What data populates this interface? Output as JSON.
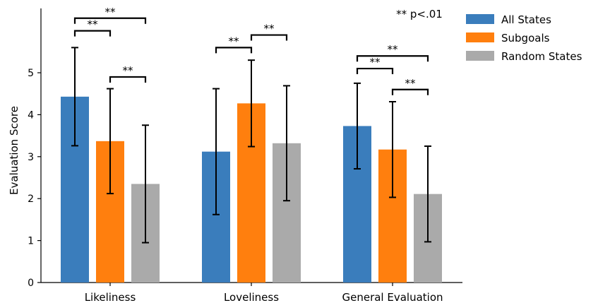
{
  "chart_data": {
    "type": "bar",
    "categories": [
      "Likeliness",
      "Loveliness",
      "General Evaluation"
    ],
    "series": [
      {
        "name": "All States",
        "color": "#3a7dbc",
        "values": [
          4.43,
          3.12,
          3.73
        ],
        "err": [
          1.17,
          1.5,
          1.02
        ]
      },
      {
        "name": "Subgoals",
        "color": "#ff7f0e",
        "values": [
          3.37,
          4.27,
          3.17
        ],
        "err": [
          1.25,
          1.03,
          1.14
        ]
      },
      {
        "name": "Random States",
        "color": "#aaaaaa",
        "values": [
          2.35,
          3.32,
          2.11
        ],
        "err": [
          1.4,
          1.37,
          1.14
        ]
      }
    ],
    "ylabel": "Evaluation Score",
    "xlabel": "",
    "ylim": [
      0,
      6.5
    ],
    "yticks": [
      "0",
      "1",
      "2",
      "3",
      "4",
      "5"
    ],
    "legend_position": "top-right",
    "significance_note": "** p<.01",
    "significance_brackets": [
      {
        "category": 0,
        "from": 0,
        "to": 2,
        "level": 6.3,
        "label": "**"
      },
      {
        "category": 0,
        "from": 0,
        "to": 1,
        "level": 6.0,
        "label": "**"
      },
      {
        "category": 0,
        "from": 1,
        "to": 2,
        "level": 4.9,
        "label": "**"
      },
      {
        "category": 1,
        "from": 0,
        "to": 1,
        "level": 5.6,
        "label": "**"
      },
      {
        "category": 1,
        "from": 1,
        "to": 2,
        "level": 5.9,
        "label": "**"
      },
      {
        "category": 2,
        "from": 0,
        "to": 2,
        "level": 5.4,
        "label": "**"
      },
      {
        "category": 2,
        "from": 0,
        "to": 1,
        "level": 5.1,
        "label": "**"
      },
      {
        "category": 2,
        "from": 1,
        "to": 2,
        "level": 4.6,
        "label": "**"
      }
    ]
  }
}
